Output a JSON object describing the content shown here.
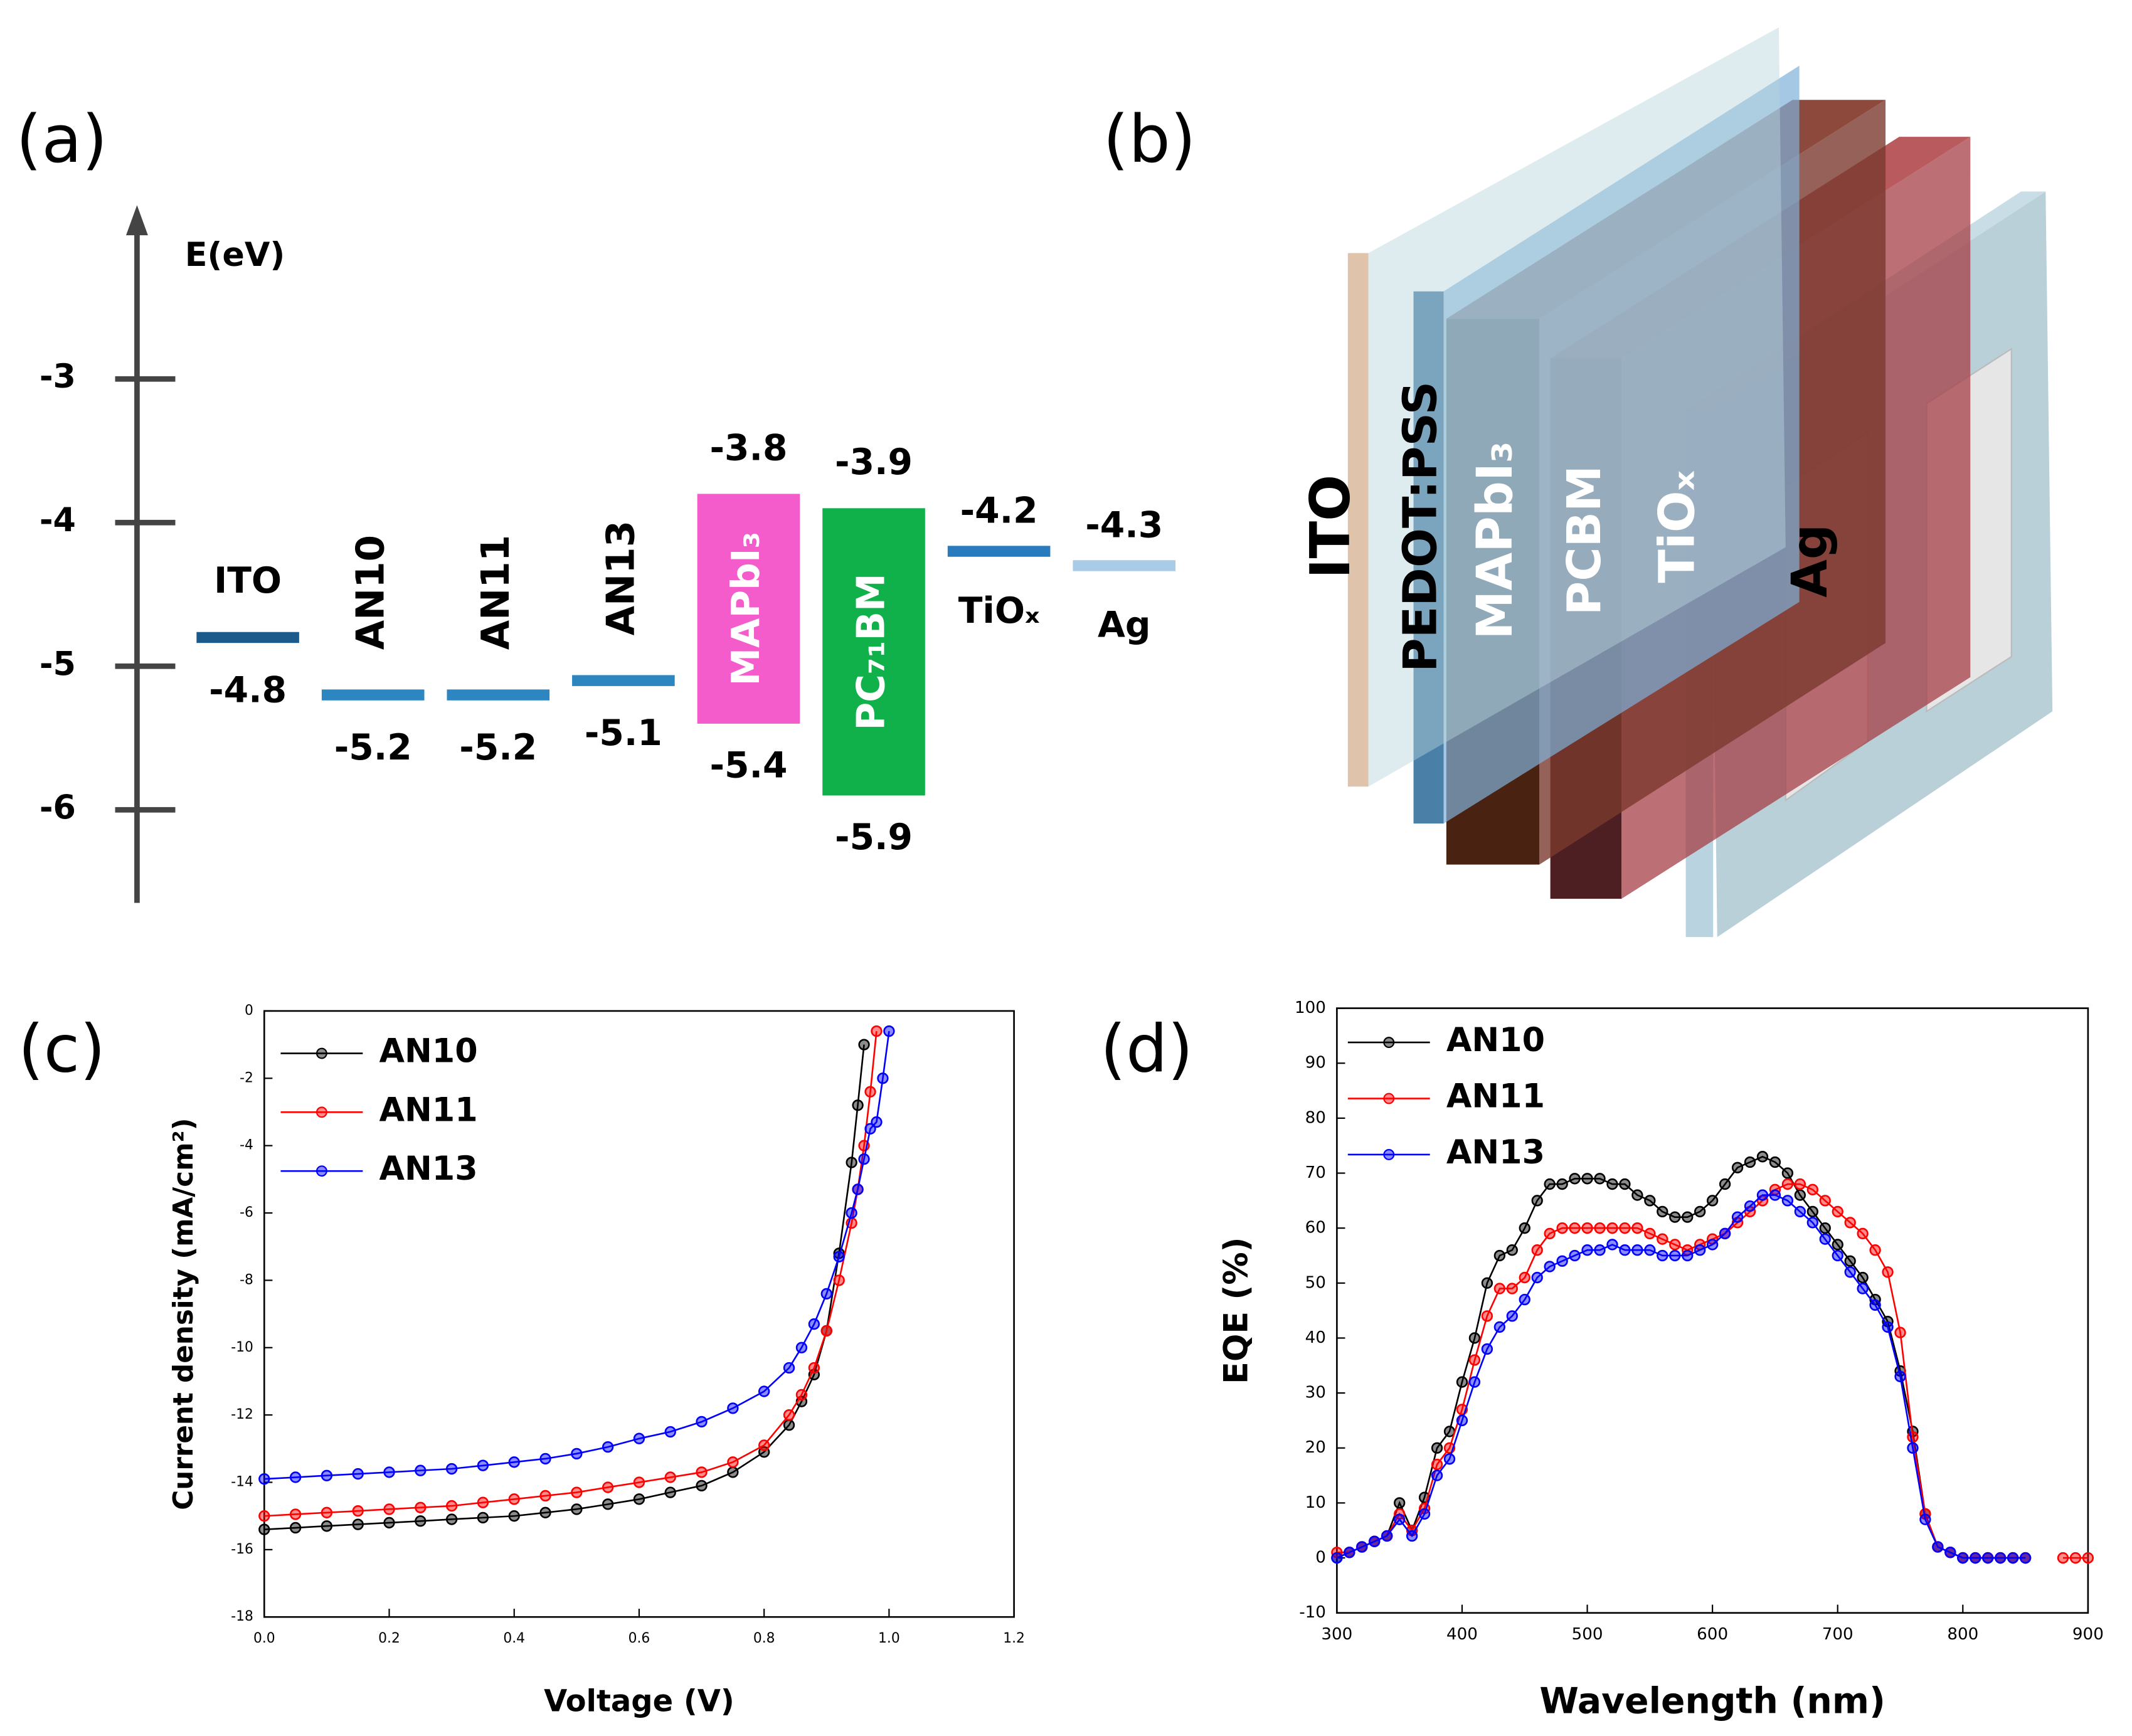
{
  "energy_diagram": {
    "panel_label": "(a)",
    "axis_label": "E(eV)",
    "ticks": [
      -3,
      -4,
      -5,
      -6
    ],
    "levels": [
      {
        "label": "ITO",
        "level": -4.8,
        "color": "#1d5a8c"
      },
      {
        "label": "AN10",
        "level": -5.2,
        "color": "#2e86c1"
      },
      {
        "label": "AN11",
        "level": -5.2,
        "color": "#2e86c1"
      },
      {
        "label": "AN13",
        "level": -5.1,
        "color": "#2e86c1"
      },
      {
        "label": "MAPbI₃",
        "top": -3.8,
        "bottom": -5.4,
        "color": "#f45ccb"
      },
      {
        "label": "PC₇₁BM",
        "top": -3.9,
        "bottom": -5.9,
        "color": "#10b04a"
      },
      {
        "label": "TiOₓ",
        "level": -4.2,
        "color": "#2a7bbd"
      },
      {
        "label": "Ag",
        "level": -4.3,
        "color": "#a8cce8"
      }
    ]
  },
  "device": {
    "panel_label": "(b)",
    "layers": [
      "ITO",
      "PEDOT:PSS",
      "MAPbI₃",
      "PCBM",
      "TiOₓ",
      "Ag"
    ]
  },
  "chart_data": [
    {
      "type": "line",
      "panel_label": "(c)",
      "xlabel": "Voltage (V)",
      "ylabel": "Current density (mA/cm²)",
      "x": [
        0,
        0.05,
        0.1,
        0.15,
        0.2,
        0.25,
        0.3,
        0.35,
        0.4,
        0.45,
        0.5,
        0.55,
        0.6,
        0.65,
        0.7,
        0.75,
        0.8,
        0.84,
        0.86,
        0.88,
        0.9,
        0.92,
        0.94,
        0.95,
        0.96,
        0.97,
        0.98,
        0.99,
        1.0
      ],
      "series": [
        {
          "name": "AN10",
          "color": "#000000",
          "values": [
            -15.4,
            -15.35,
            -15.3,
            -15.25,
            -15.2,
            -15.15,
            -15.1,
            -15.05,
            -15.0,
            -14.9,
            -14.8,
            -14.65,
            -14.5,
            -14.3,
            -14.1,
            -13.7,
            -13.1,
            -12.3,
            -11.6,
            -10.8,
            -9.5,
            -7.2,
            -4.5,
            -2.8,
            -1.0,
            null,
            null,
            null,
            null
          ]
        },
        {
          "name": "AN11",
          "color": "#ff0000",
          "values": [
            -15.0,
            -14.95,
            -14.9,
            -14.85,
            -14.8,
            -14.75,
            -14.7,
            -14.6,
            -14.5,
            -14.4,
            -14.3,
            -14.15,
            -14.0,
            -13.85,
            -13.7,
            -13.4,
            -12.9,
            -12.0,
            -11.4,
            -10.6,
            -9.5,
            -8.0,
            -6.3,
            -5.3,
            -4.0,
            -2.4,
            -0.6,
            null,
            null
          ]
        },
        {
          "name": "AN13",
          "color": "#0000ff",
          "values": [
            -13.9,
            -13.85,
            -13.8,
            -13.75,
            -13.7,
            -13.65,
            -13.6,
            -13.5,
            -13.4,
            -13.3,
            -13.15,
            -12.95,
            -12.7,
            -12.5,
            -12.2,
            -11.8,
            -11.3,
            -10.6,
            -10.0,
            -9.3,
            -8.4,
            -7.3,
            -6.0,
            -5.3,
            -4.4,
            -3.5,
            -3.3,
            -2.0,
            -0.6
          ]
        }
      ],
      "xlim": [
        0,
        1.2
      ],
      "ylim": [
        -18,
        0
      ],
      "xticks": [
        {
          "value": 0,
          "label": "0.0"
        },
        0.2,
        0.4,
        0.6,
        0.8,
        {
          "value": 1,
          "label": "1.0"
        },
        1.2
      ],
      "yticks": [
        0,
        -2,
        -4,
        -6,
        -8,
        -10,
        -12,
        -14,
        -16,
        -18
      ],
      "legend": "upper left"
    },
    {
      "type": "line",
      "panel_label": "(d)",
      "xlabel": "Wavelength (nm)",
      "ylabel": "EQE (%)",
      "x": [
        300,
        310,
        320,
        330,
        340,
        350,
        360,
        370,
        380,
        390,
        400,
        410,
        420,
        430,
        440,
        450,
        460,
        470,
        480,
        490,
        500,
        510,
        520,
        530,
        540,
        550,
        560,
        570,
        580,
        590,
        600,
        610,
        620,
        630,
        640,
        650,
        660,
        670,
        680,
        690,
        700,
        710,
        720,
        730,
        740,
        750,
        760,
        770,
        780,
        790,
        800,
        810,
        820,
        830,
        840,
        850,
        860,
        870,
        880,
        890,
        900
      ],
      "series": [
        {
          "name": "AN10",
          "color": "#000000",
          "values": [
            0,
            1,
            2,
            3,
            4,
            10,
            5,
            11,
            20,
            23,
            32,
            40,
            50,
            55,
            56,
            60,
            65,
            68,
            68,
            69,
            69,
            69,
            68,
            68,
            66,
            65,
            63,
            62,
            62,
            63,
            65,
            68,
            71,
            72,
            73,
            72,
            70,
            66,
            63,
            60,
            57,
            54,
            51,
            47,
            43,
            34,
            23,
            8,
            2,
            1,
            0,
            0,
            0,
            0,
            0,
            0,
            null,
            null,
            null,
            null,
            null
          ]
        },
        {
          "name": "AN11",
          "color": "#ff0000",
          "values": [
            1,
            1,
            2,
            3,
            4,
            8,
            5,
            9,
            17,
            20,
            27,
            36,
            44,
            49,
            49,
            51,
            56,
            59,
            60,
            60,
            60,
            60,
            60,
            60,
            60,
            59,
            58,
            57,
            56,
            57,
            58,
            59,
            61,
            63,
            65,
            67,
            68,
            68,
            67,
            65,
            63,
            61,
            59,
            56,
            52,
            41,
            22,
            8,
            2,
            1,
            0,
            0,
            0,
            0,
            0,
            0,
            null,
            null,
            0,
            0,
            0
          ]
        },
        {
          "name": "AN13",
          "color": "#0000ff",
          "values": [
            0,
            1,
            2,
            3,
            4,
            7,
            4,
            8,
            15,
            18,
            25,
            32,
            38,
            42,
            44,
            47,
            51,
            53,
            54,
            55,
            56,
            56,
            57,
            56,
            56,
            56,
            55,
            55,
            55,
            56,
            57,
            59,
            62,
            64,
            66,
            66,
            65,
            63,
            61,
            58,
            55,
            52,
            49,
            46,
            42,
            33,
            20,
            7,
            2,
            1,
            0,
            0,
            0,
            0,
            0,
            0,
            null,
            null,
            null,
            null,
            null
          ]
        }
      ],
      "xlim": [
        300,
        900
      ],
      "ylim": [
        -10,
        100
      ],
      "xticks": [
        300,
        400,
        500,
        600,
        700,
        800,
        900
      ],
      "yticks": [
        -10,
        0,
        10,
        20,
        30,
        40,
        50,
        60,
        70,
        80,
        90,
        100
      ],
      "legend": "upper left"
    }
  ]
}
